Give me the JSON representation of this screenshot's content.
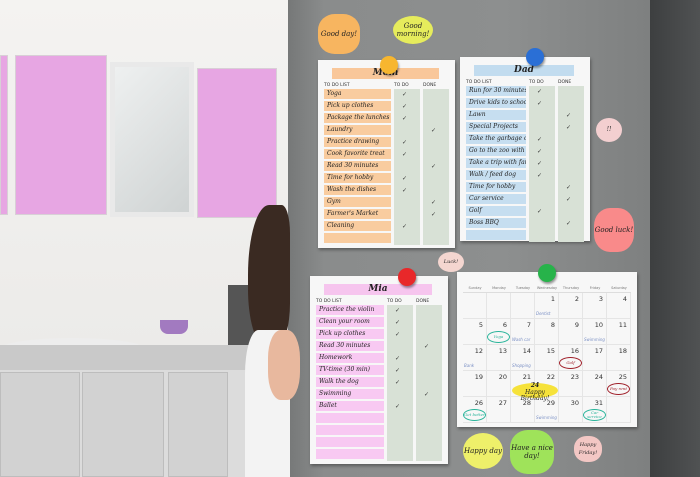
{
  "lists": [
    {
      "name": "Mom",
      "header": {
        "list": "TO DO LIST",
        "todo": "TO DO",
        "done": "DONE"
      },
      "row_color": "#f9cc9f",
      "title_color": "#f9c79a",
      "magnet_color": "#f7b62f",
      "items": [
        {
          "task": "Yoga",
          "todo": true,
          "done": false
        },
        {
          "task": "Pick up clothes",
          "todo": true,
          "done": false
        },
        {
          "task": "Package the lunches",
          "todo": true,
          "done": false
        },
        {
          "task": "Laundry",
          "todo": false,
          "done": true
        },
        {
          "task": "Practice drawing",
          "todo": true,
          "done": false
        },
        {
          "task": "Cook favorite treat",
          "todo": true,
          "done": false
        },
        {
          "task": "Read 30 minutes",
          "todo": false,
          "done": true
        },
        {
          "task": "Time for hobby",
          "todo": true,
          "done": false
        },
        {
          "task": "Wash the dishes",
          "todo": true,
          "done": false
        },
        {
          "task": "Gym",
          "todo": false,
          "done": true
        },
        {
          "task": "Farmer's Market",
          "todo": false,
          "done": true
        },
        {
          "task": "Cleaning",
          "todo": true,
          "done": false
        },
        {
          "task": "",
          "todo": false,
          "done": false
        }
      ]
    },
    {
      "name": "Dad",
      "header": {
        "list": "TO DO LIST",
        "todo": "TO DO",
        "done": "DONE"
      },
      "row_color": "#c6def0",
      "title_color": "#c2dcef",
      "magnet_color": "#2a6fd6",
      "items": [
        {
          "task": "Run for 30 minutes",
          "todo": true,
          "done": false
        },
        {
          "task": "Drive kids to school",
          "todo": true,
          "done": false
        },
        {
          "task": "Lawn",
          "todo": false,
          "done": true
        },
        {
          "task": "Special Projects",
          "todo": false,
          "done": true
        },
        {
          "task": "Take the garbage out",
          "todo": true,
          "done": false
        },
        {
          "task": "Go to the zoo with kids",
          "todo": true,
          "done": false
        },
        {
          "task": "Take a trip with family",
          "todo": true,
          "done": false
        },
        {
          "task": "Walk / feed dog",
          "todo": true,
          "done": false
        },
        {
          "task": "Time for hobby",
          "todo": false,
          "done": true
        },
        {
          "task": "Car service",
          "todo": false,
          "done": true
        },
        {
          "task": "Golf",
          "todo": true,
          "done": false
        },
        {
          "task": "Boss BBQ",
          "todo": false,
          "done": true
        },
        {
          "task": "",
          "todo": false,
          "done": false
        }
      ]
    },
    {
      "name": "Mia",
      "header": {
        "list": "TO DO LIST",
        "todo": "TO DO",
        "done": "DONE"
      },
      "row_color": "#f8c9f2",
      "title_color": "#f6c5ee",
      "magnet_color": "#e8282a",
      "items": [
        {
          "task": "Practice the violin",
          "todo": true,
          "done": false
        },
        {
          "task": "Clean your room",
          "todo": true,
          "done": false
        },
        {
          "task": "Pick up clothes",
          "todo": true,
          "done": false
        },
        {
          "task": "Read 30 minutes",
          "todo": false,
          "done": true
        },
        {
          "task": "Homework",
          "todo": true,
          "done": false
        },
        {
          "task": "TV-time (30 min)",
          "todo": true,
          "done": false
        },
        {
          "task": "Walk the dog",
          "todo": true,
          "done": false
        },
        {
          "task": "Swimming",
          "todo": false,
          "done": true
        },
        {
          "task": "Ballet",
          "todo": true,
          "done": false
        },
        {
          "task": "",
          "todo": false,
          "done": false
        },
        {
          "task": "",
          "todo": false,
          "done": false
        },
        {
          "task": "",
          "todo": false,
          "done": false
        },
        {
          "task": "",
          "todo": false,
          "done": false
        }
      ]
    }
  ],
  "calendar": {
    "weekdays": [
      "Sunday",
      "Monday",
      "Tuesday",
      "Wednesday",
      "Thursday",
      "Friday",
      "Saturday"
    ],
    "magnet_color": "#27b34a",
    "weeks": [
      [
        {
          "d": ""
        },
        {
          "d": ""
        },
        {
          "d": ""
        },
        {
          "d": "1",
          "note": "Dentist"
        },
        {
          "d": "2"
        },
        {
          "d": "3"
        },
        {
          "d": "4"
        }
      ],
      [
        {
          "d": "5"
        },
        {
          "d": "6",
          "circle": "Yoga",
          "color": "#2bb59b"
        },
        {
          "d": "7",
          "note": "Wash car"
        },
        {
          "d": "8"
        },
        {
          "d": "9"
        },
        {
          "d": "10",
          "note": "Swimming"
        },
        {
          "d": "11"
        }
      ],
      [
        {
          "d": "12",
          "note": "Bank"
        },
        {
          "d": "13"
        },
        {
          "d": "14",
          "note": "Shopping"
        },
        {
          "d": "15"
        },
        {
          "d": "16",
          "circle": "Golf",
          "color": "#a0202a"
        },
        {
          "d": "17"
        },
        {
          "d": "18"
        }
      ],
      [
        {
          "d": "19"
        },
        {
          "d": "20"
        },
        {
          "d": "21"
        },
        {
          "d": "22"
        },
        {
          "d": "23"
        },
        {
          "d": "24"
        },
        {
          "d": "25",
          "circle": "Pay rent",
          "color": "#a0202a"
        }
      ],
      [
        {
          "d": "26",
          "circle": "Get better",
          "color": "#2bb59b"
        },
        {
          "d": "27"
        },
        {
          "d": "28"
        },
        {
          "d": "29",
          "note": "Swimming"
        },
        {
          "d": "30"
        },
        {
          "d": "31",
          "circle": "Car service",
          "color": "#2bb59b"
        },
        {
          "d": ""
        }
      ]
    ],
    "birthday": {
      "day": "24",
      "text": "Happy Birthday!",
      "color": "#f6e23a"
    }
  },
  "stickers": [
    {
      "text": "Good day!",
      "color": "#f7b560"
    },
    {
      "text": "Good morning!",
      "color": "#e6ec5c"
    },
    {
      "text": "Luck!",
      "color": "#f4d6d0"
    },
    {
      "text": "Good luck!",
      "color": "#f98a8a"
    },
    {
      "text": "Happy day",
      "color": "#eef06a"
    },
    {
      "text": "Have a nice day!",
      "color": "#9fe35a"
    },
    {
      "text": "Happy Friday!",
      "color": "#f3c7c4"
    },
    {
      "text": "!!",
      "color": "#f3cfd0"
    }
  ]
}
